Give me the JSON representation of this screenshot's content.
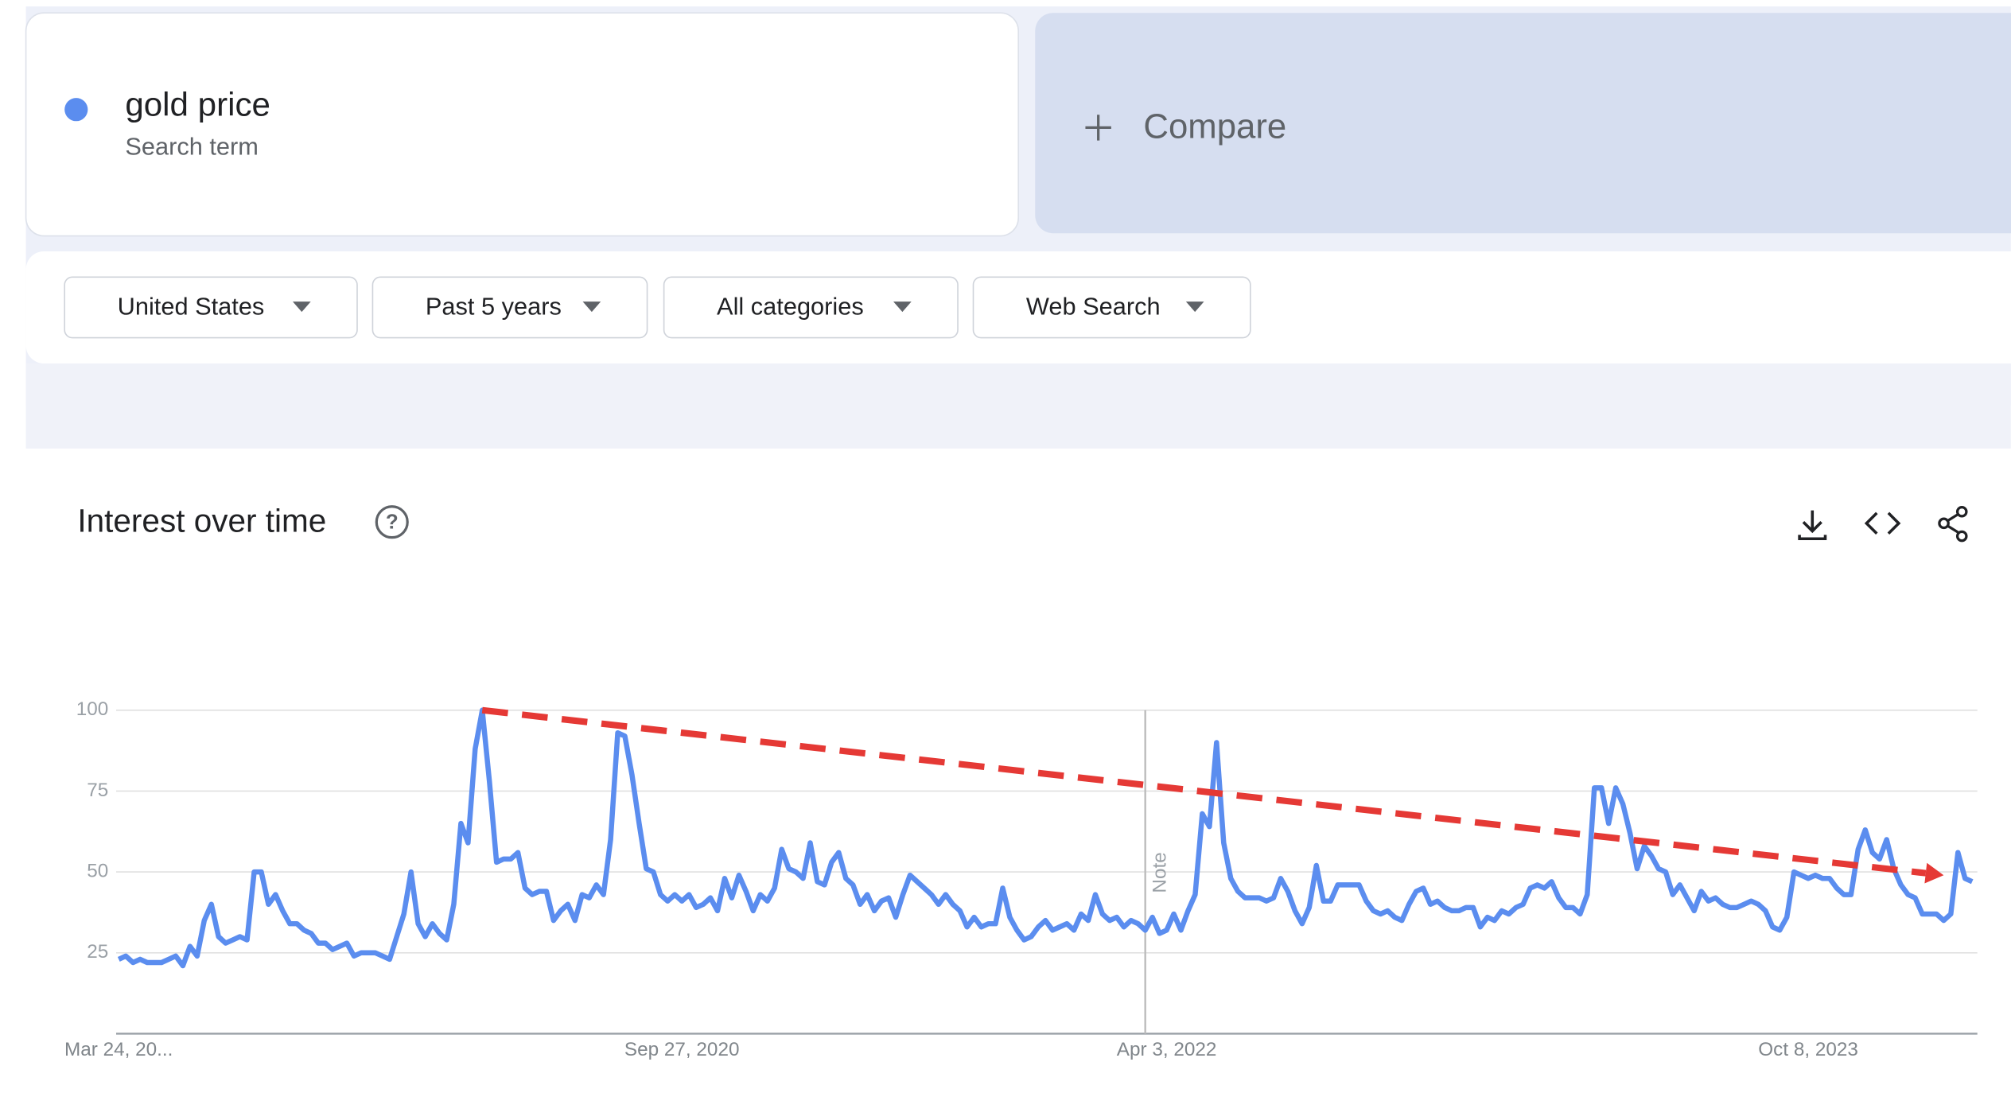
{
  "search_card": {
    "subtitle": "Search term"
  },
  "compare": "Compare",
  "filters": [
    "United States",
    "Past 5 years",
    "All categories",
    "Web Search"
  ],
  "chart_data": {
    "type": "line",
    "title": "Interest over time",
    "categories": [
      "Mar 24, 20...",
      null,
      null,
      null,
      null,
      null,
      null,
      null,
      null,
      null,
      null,
      null,
      null,
      null,
      null,
      null,
      null,
      null,
      null,
      null,
      null,
      null,
      null,
      null,
      null,
      null,
      null,
      null,
      null,
      null,
      null,
      null,
      null,
      null,
      null,
      null,
      null,
      null,
      null,
      null,
      null,
      null,
      null,
      null,
      null,
      null,
      null,
      null,
      null,
      null,
      null,
      null,
      null,
      null,
      null,
      null,
      null,
      null,
      null,
      null,
      null,
      null,
      null,
      null,
      null,
      null,
      null,
      null,
      null,
      null,
      null,
      null,
      null,
      null,
      null,
      null,
      null,
      null,
      null,
      "Sep 27, 2020",
      null,
      null,
      null,
      null,
      null,
      null,
      null,
      null,
      null,
      null,
      null,
      null,
      null,
      null,
      null,
      null,
      null,
      null,
      null,
      null,
      null,
      null,
      null,
      null,
      null,
      null,
      null,
      null,
      null,
      null,
      null,
      null,
      null,
      null,
      null,
      null,
      null,
      null,
      null,
      null,
      null,
      null,
      null,
      null,
      null,
      null,
      null,
      null,
      null,
      null,
      null,
      null,
      null,
      null,
      null,
      null,
      null,
      null,
      null,
      null,
      null,
      null,
      null,
      null,
      null,
      null,
      null,
      "Apr 3, 2022",
      null,
      null,
      null,
      null,
      null,
      null,
      null,
      null,
      null,
      null,
      null,
      null,
      null,
      null,
      null,
      null,
      null,
      null,
      null,
      null,
      null,
      null,
      null,
      null,
      null,
      null,
      null,
      null,
      null,
      null,
      null,
      null,
      null,
      null,
      null,
      null,
      null,
      null,
      null,
      null,
      null,
      null,
      null,
      null,
      null,
      null,
      null,
      null,
      null,
      null,
      null,
      null,
      null,
      null,
      null,
      null,
      null,
      null,
      null,
      null,
      null,
      null,
      null,
      null,
      null,
      null,
      null,
      null,
      null,
      null,
      null,
      null,
      null,
      null,
      null,
      null,
      null,
      null,
      null,
      null,
      null,
      null,
      null,
      null,
      null,
      null,
      null,
      null,
      null,
      "Oct 8, 2023",
      null,
      null,
      null,
      null,
      null,
      null,
      null,
      null,
      null,
      null,
      null,
      null,
      null,
      null,
      null,
      null,
      null,
      null,
      null,
      null,
      null,
      null,
      null
    ],
    "series": [
      {
        "name": "gold price",
        "color": "#5b8def",
        "values": [
          23,
          24,
          22,
          23,
          22,
          22,
          22,
          23,
          24,
          21,
          27,
          24,
          35,
          40,
          30,
          28,
          29,
          30,
          29,
          50,
          50,
          40,
          43,
          38,
          34,
          34,
          32,
          31,
          28,
          28,
          26,
          27,
          28,
          24,
          25,
          25,
          25,
          24,
          23,
          30,
          37,
          50,
          34,
          30,
          34,
          31,
          29,
          40,
          65,
          59,
          88,
          100,
          78,
          53,
          54,
          54,
          56,
          45,
          43,
          44,
          44,
          35,
          38,
          40,
          35,
          43,
          42,
          46,
          43,
          60,
          93,
          92,
          80,
          65,
          51,
          50,
          43,
          41,
          43,
          41,
          43,
          39,
          40,
          42,
          38,
          48,
          42,
          49,
          44,
          38,
          43,
          41,
          45,
          57,
          51,
          50,
          48,
          59,
          47,
          46,
          53,
          56,
          48,
          46,
          40,
          43,
          38,
          41,
          42,
          36,
          43,
          49,
          47,
          45,
          43,
          40,
          43,
          40,
          38,
          33,
          36,
          33,
          34,
          34,
          45,
          36,
          32,
          29,
          30,
          33,
          35,
          32,
          33,
          34,
          32,
          37,
          35,
          43,
          37,
          35,
          36,
          33,
          35,
          34,
          32,
          36,
          31,
          32,
          37,
          32,
          38,
          43,
          68,
          64,
          90,
          59,
          48,
          44,
          42,
          42,
          42,
          41,
          42,
          48,
          44,
          38,
          34,
          39,
          52,
          41,
          41,
          46,
          46,
          46,
          46,
          41,
          38,
          37,
          38,
          36,
          35,
          40,
          44,
          45,
          40,
          41,
          39,
          38,
          38,
          39,
          39,
          33,
          36,
          35,
          38,
          37,
          39,
          40,
          45,
          46,
          45,
          47,
          42,
          39,
          39,
          37,
          43,
          76,
          76,
          65,
          76,
          71,
          62,
          51,
          58,
          55,
          51,
          50,
          43,
          46,
          42,
          38,
          44,
          41,
          42,
          40,
          39,
          39,
          40,
          41,
          40,
          38,
          33,
          32,
          36,
          50,
          49,
          48,
          49,
          48,
          48,
          45,
          43,
          43,
          57,
          63,
          56,
          54,
          60,
          51,
          46,
          43,
          42,
          37,
          37,
          37,
          35,
          37,
          56,
          48,
          47
        ]
      }
    ],
    "ylim": [
      0,
      100
    ],
    "yticks": [
      25,
      50,
      75,
      100
    ],
    "grid": true,
    "annotations": [
      {
        "label": "Note",
        "at": 144
      }
    ],
    "trend": {
      "from": [
        51,
        100
      ],
      "to": [
        256,
        49
      ],
      "color": "#e53935"
    }
  }
}
